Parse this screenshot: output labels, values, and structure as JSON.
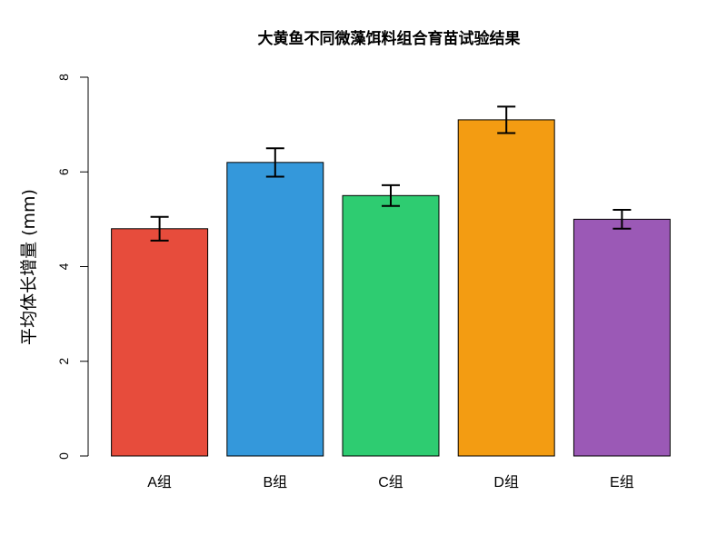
{
  "chart_data": {
    "type": "bar",
    "title": "大黄鱼不同微藻饵料组合育苗试验结果",
    "xlabel": "",
    "ylabel": "平均体长增量 (mm)",
    "ylim": [
      0,
      8
    ],
    "yticks": [
      0,
      2,
      4,
      6,
      8
    ],
    "grid": false,
    "categories": [
      "A组",
      "B组",
      "C组",
      "D组",
      "E组"
    ],
    "values": [
      4.8,
      6.2,
      5.5,
      7.1,
      5.0
    ],
    "errors": [
      0.25,
      0.3,
      0.22,
      0.28,
      0.2
    ],
    "colors": [
      "#e74c3c",
      "#3498db",
      "#2ecc71",
      "#f39c12",
      "#9b59b6"
    ]
  }
}
